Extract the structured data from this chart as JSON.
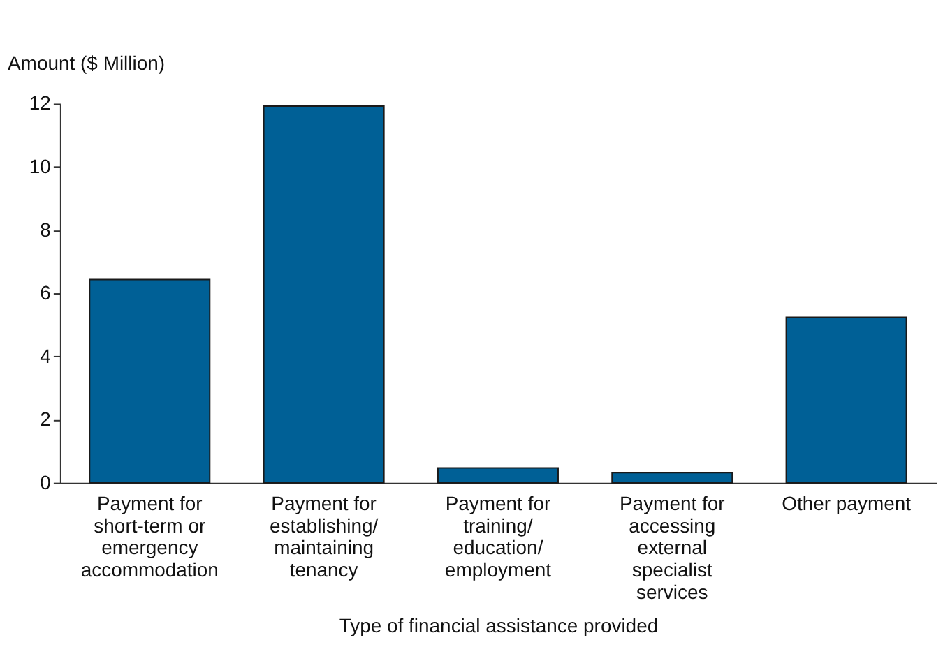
{
  "chart_data": {
    "type": "bar",
    "xlabel": "Type of financial assistance provided",
    "ylabel": "Amount ($ Million)",
    "categories": [
      "Payment for short-term or emergency accommodation",
      "Payment for establishing/ maintaining tenancy",
      "Payment for training/ education/ employment",
      "Payment for accessing external specialist services",
      "Other payment"
    ],
    "values": [
      6.43,
      11.92,
      0.47,
      0.32,
      5.24
    ],
    "color": "#006096",
    "ylim": [
      0,
      12
    ],
    "yticks": [
      0,
      2,
      4,
      6,
      8,
      10,
      12
    ],
    "grid": false
  }
}
